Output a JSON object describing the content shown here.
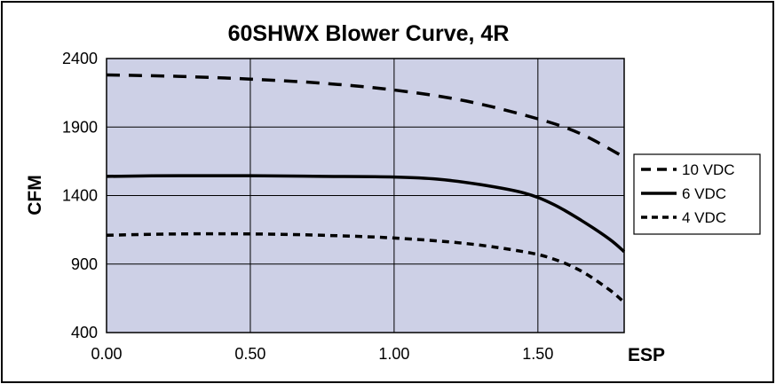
{
  "chart_data": {
    "type": "line",
    "title": "60SHWX Blower Curve, 4R",
    "xlabel": "ESP",
    "ylabel": "CFM",
    "xlim": [
      0,
      1.8
    ],
    "ylim": [
      400,
      2400
    ],
    "xticks": [
      "0.00",
      "0.50",
      "1.00",
      "1.50"
    ],
    "yticks": [
      "400",
      "900",
      "1400",
      "1900",
      "2400"
    ],
    "grid": true,
    "legend_position": "right",
    "plot_background": "#cdd0e6",
    "series": [
      {
        "name": "10 VDC",
        "style": "long-dash",
        "x": [
          0.0,
          0.25,
          0.5,
          0.75,
          1.0,
          1.25,
          1.5,
          1.65,
          1.8
        ],
        "y": [
          2280,
          2270,
          2250,
          2220,
          2170,
          2090,
          1960,
          1850,
          1680
        ]
      },
      {
        "name": "6 VDC",
        "style": "solid",
        "x": [
          0.0,
          0.25,
          0.5,
          0.75,
          1.0,
          1.15,
          1.3,
          1.45,
          1.55,
          1.65,
          1.75,
          1.8
        ],
        "y": [
          1540,
          1545,
          1545,
          1540,
          1535,
          1520,
          1480,
          1420,
          1340,
          1220,
          1080,
          990
        ]
      },
      {
        "name": "4 VDC",
        "style": "short-dash",
        "x": [
          0.0,
          0.25,
          0.5,
          0.75,
          1.0,
          1.25,
          1.45,
          1.55,
          1.65,
          1.75,
          1.8
        ],
        "y": [
          1110,
          1120,
          1120,
          1110,
          1090,
          1050,
          990,
          940,
          850,
          710,
          620
        ]
      }
    ]
  }
}
